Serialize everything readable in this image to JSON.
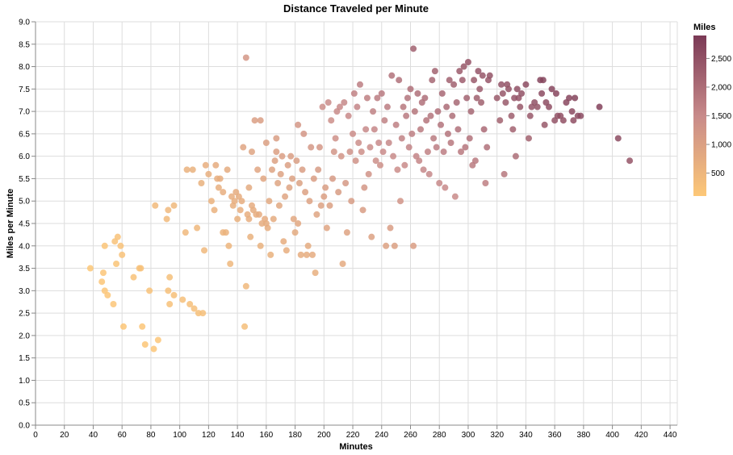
{
  "chart_data": {
    "type": "scatter",
    "title": "Distance Traveled per Minute",
    "xlabel": "Minutes",
    "ylabel": "Miles per Minute",
    "xlim": [
      0,
      445
    ],
    "ylim": [
      0,
      9
    ],
    "x_ticks": [
      0,
      20,
      40,
      60,
      80,
      100,
      120,
      140,
      160,
      180,
      200,
      220,
      240,
      260,
      280,
      300,
      320,
      340,
      360,
      380,
      400,
      420,
      440
    ],
    "y_ticks": [
      "0.0",
      "0.5",
      "1.0",
      "1.5",
      "2.0",
      "2.5",
      "3.0",
      "3.5",
      "4.0",
      "4.5",
      "5.0",
      "5.5",
      "6.0",
      "6.5",
      "7.0",
      "7.5",
      "8.0",
      "8.5",
      "9.0"
    ],
    "grid": true,
    "legend": {
      "title": "Miles",
      "position": "right",
      "ticks": [
        500,
        1000,
        1500,
        2000,
        2500
      ],
      "tick_labels": [
        "500",
        "1,000",
        "1,500",
        "2,000",
        "2,500"
      ],
      "min": 100,
      "max": 2900,
      "color_low": "#fdc877",
      "color_mid": "#c88a8a",
      "color_high": "#7b3a56"
    },
    "color_encoding": "miles = minutes * miles_per_minute",
    "points": [
      [
        38,
        3.5
      ],
      [
        46,
        3.2
      ],
      [
        47,
        3.4
      ],
      [
        48,
        4.0
      ],
      [
        48,
        3.0
      ],
      [
        50,
        2.9
      ],
      [
        54,
        2.7
      ],
      [
        55,
        4.1
      ],
      [
        56,
        3.6
      ],
      [
        57,
        4.2
      ],
      [
        59,
        4.0
      ],
      [
        60,
        3.8
      ],
      [
        61,
        2.2
      ],
      [
        68,
        3.3
      ],
      [
        72,
        3.5
      ],
      [
        73,
        3.5
      ],
      [
        74,
        2.2
      ],
      [
        76,
        1.8
      ],
      [
        79,
        3.0
      ],
      [
        82,
        1.7
      ],
      [
        83,
        4.9
      ],
      [
        85,
        1.9
      ],
      [
        91,
        4.6
      ],
      [
        92,
        4.8
      ],
      [
        92,
        3.0
      ],
      [
        93,
        3.3
      ],
      [
        93,
        2.7
      ],
      [
        96,
        4.9
      ],
      [
        96,
        2.9
      ],
      [
        102,
        2.8
      ],
      [
        104,
        4.3
      ],
      [
        105,
        5.7
      ],
      [
        107,
        2.7
      ],
      [
        109,
        5.7
      ],
      [
        110,
        2.6
      ],
      [
        112,
        4.4
      ],
      [
        113,
        2.5
      ],
      [
        115,
        5.4
      ],
      [
        116,
        2.5
      ],
      [
        117,
        3.9
      ],
      [
        118,
        5.8
      ],
      [
        120,
        5.6
      ],
      [
        122,
        5.0
      ],
      [
        124,
        4.8
      ],
      [
        125,
        5.8
      ],
      [
        126,
        5.5
      ],
      [
        127,
        5.3
      ],
      [
        128,
        5.5
      ],
      [
        130,
        4.3
      ],
      [
        130,
        5.2
      ],
      [
        132,
        4.3
      ],
      [
        133,
        5.7
      ],
      [
        134,
        4.0
      ],
      [
        135,
        3.6
      ],
      [
        136,
        5.1
      ],
      [
        137,
        4.9
      ],
      [
        138,
        5.0
      ],
      [
        139,
        5.2
      ],
      [
        140,
        4.6
      ],
      [
        141,
        5.1
      ],
      [
        142,
        4.8
      ],
      [
        143,
        5.0
      ],
      [
        144,
        6.2
      ],
      [
        145,
        2.2
      ],
      [
        146,
        8.2
      ],
      [
        146,
        3.1
      ],
      [
        147,
        4.7
      ],
      [
        148,
        5.3
      ],
      [
        148,
        4.6
      ],
      [
        149,
        4.2
      ],
      [
        150,
        4.9
      ],
      [
        150,
        6.1
      ],
      [
        151,
        4.8
      ],
      [
        152,
        6.8
      ],
      [
        153,
        4.7
      ],
      [
        154,
        5.7
      ],
      [
        155,
        4.7
      ],
      [
        156,
        6.8
      ],
      [
        156,
        4.0
      ],
      [
        157,
        4.5
      ],
      [
        158,
        5.5
      ],
      [
        159,
        4.6
      ],
      [
        160,
        4.5
      ],
      [
        160,
        6.3
      ],
      [
        161,
        4.4
      ],
      [
        162,
        5.0
      ],
      [
        163,
        3.8
      ],
      [
        164,
        5.7
      ],
      [
        165,
        4.6
      ],
      [
        166,
        5.9
      ],
      [
        167,
        6.4
      ],
      [
        167,
        6.1
      ],
      [
        168,
        5.4
      ],
      [
        169,
        4.9
      ],
      [
        170,
        5.6
      ],
      [
        171,
        6.0
      ],
      [
        172,
        4.1
      ],
      [
        173,
        5.1
      ],
      [
        174,
        3.9
      ],
      [
        175,
        5.8
      ],
      [
        176,
        5.3
      ],
      [
        177,
        6.0
      ],
      [
        178,
        5.5
      ],
      [
        179,
        4.6
      ],
      [
        180,
        4.3
      ],
      [
        181,
        5.9
      ],
      [
        182,
        4.5
      ],
      [
        182,
        6.7
      ],
      [
        183,
        5.4
      ],
      [
        184,
        3.8
      ],
      [
        185,
        5.7
      ],
      [
        186,
        6.5
      ],
      [
        187,
        5.2
      ],
      [
        188,
        3.8
      ],
      [
        189,
        4.0
      ],
      [
        190,
        5.0
      ],
      [
        191,
        6.2
      ],
      [
        192,
        3.8
      ],
      [
        193,
        5.5
      ],
      [
        194,
        3.4
      ],
      [
        195,
        4.7
      ],
      [
        196,
        5.7
      ],
      [
        197,
        6.2
      ],
      [
        198,
        4.9
      ],
      [
        199,
        7.1
      ],
      [
        200,
        5.1
      ],
      [
        201,
        5.3
      ],
      [
        202,
        4.4
      ],
      [
        203,
        7.2
      ],
      [
        204,
        4.9
      ],
      [
        205,
        6.8
      ],
      [
        206,
        5.5
      ],
      [
        207,
        6.1
      ],
      [
        208,
        6.4
      ],
      [
        209,
        7.0
      ],
      [
        210,
        5.2
      ],
      [
        211,
        7.1
      ],
      [
        212,
        6.0
      ],
      [
        213,
        3.6
      ],
      [
        214,
        7.2
      ],
      [
        215,
        5.4
      ],
      [
        216,
        4.3
      ],
      [
        217,
        6.9
      ],
      [
        218,
        6.1
      ],
      [
        219,
        5.0
      ],
      [
        220,
        6.5
      ],
      [
        221,
        7.4
      ],
      [
        222,
        5.9
      ],
      [
        223,
        7.1
      ],
      [
        224,
        6.3
      ],
      [
        225,
        7.6
      ],
      [
        226,
        6.1
      ],
      [
        227,
        4.8
      ],
      [
        228,
        5.3
      ],
      [
        229,
        6.6
      ],
      [
        230,
        7.3
      ],
      [
        231,
        5.6
      ],
      [
        232,
        6.2
      ],
      [
        233,
        4.2
      ],
      [
        234,
        7.0
      ],
      [
        235,
        6.6
      ],
      [
        236,
        5.9
      ],
      [
        237,
        7.3
      ],
      [
        238,
        6.3
      ],
      [
        239,
        5.8
      ],
      [
        240,
        7.4
      ],
      [
        241,
        6.1
      ],
      [
        242,
        6.8
      ],
      [
        243,
        4.0
      ],
      [
        244,
        7.1
      ],
      [
        245,
        6.3
      ],
      [
        246,
        4.4
      ],
      [
        247,
        7.8
      ],
      [
        248,
        6.0
      ],
      [
        249,
        4.0
      ],
      [
        250,
        6.7
      ],
      [
        251,
        5.7
      ],
      [
        252,
        7.7
      ],
      [
        253,
        5.0
      ],
      [
        254,
        6.4
      ],
      [
        255,
        7.1
      ],
      [
        256,
        5.8
      ],
      [
        257,
        6.9
      ],
      [
        258,
        7.3
      ],
      [
        259,
        6.2
      ],
      [
        260,
        7.5
      ],
      [
        261,
        6.5
      ],
      [
        262,
        8.4
      ],
      [
        262,
        4.0
      ],
      [
        263,
        7.0
      ],
      [
        264,
        6.0
      ],
      [
        265,
        7.4
      ],
      [
        266,
        5.9
      ],
      [
        267,
        6.6
      ],
      [
        268,
        7.2
      ],
      [
        269,
        5.7
      ],
      [
        270,
        7.3
      ],
      [
        271,
        6.8
      ],
      [
        272,
        6.1
      ],
      [
        273,
        5.6
      ],
      [
        274,
        6.9
      ],
      [
        275,
        7.7
      ],
      [
        276,
        6.4
      ],
      [
        277,
        7.9
      ],
      [
        278,
        6.2
      ],
      [
        279,
        7.0
      ],
      [
        280,
        5.4
      ],
      [
        281,
        6.7
      ],
      [
        282,
        7.4
      ],
      [
        283,
        6.1
      ],
      [
        284,
        5.3
      ],
      [
        285,
        7.1
      ],
      [
        286,
        6.5
      ],
      [
        287,
        7.7
      ],
      [
        288,
        6.3
      ],
      [
        289,
        6.9
      ],
      [
        290,
        7.6
      ],
      [
        291,
        5.1
      ],
      [
        292,
        7.2
      ],
      [
        293,
        6.6
      ],
      [
        294,
        7.9
      ],
      [
        295,
        6.1
      ],
      [
        296,
        7.7
      ],
      [
        297,
        8.0
      ],
      [
        298,
        6.2
      ],
      [
        299,
        7.3
      ],
      [
        300,
        8.1
      ],
      [
        301,
        6.4
      ],
      [
        302,
        7.0
      ],
      [
        303,
        5.8
      ],
      [
        304,
        7.7
      ],
      [
        305,
        5.9
      ],
      [
        306,
        7.3
      ],
      [
        307,
        7.9
      ],
      [
        308,
        7.5
      ],
      [
        309,
        7.2
      ],
      [
        310,
        7.8
      ],
      [
        311,
        6.6
      ],
      [
        312,
        5.4
      ],
      [
        313,
        6.2
      ],
      [
        314,
        7.7
      ],
      [
        315,
        7.8
      ],
      [
        320,
        7.3
      ],
      [
        322,
        6.8
      ],
      [
        323,
        7.6
      ],
      [
        324,
        7.4
      ],
      [
        325,
        5.6
      ],
      [
        326,
        7.2
      ],
      [
        327,
        7.6
      ],
      [
        328,
        7.5
      ],
      [
        330,
        6.9
      ],
      [
        331,
        6.6
      ],
      [
        332,
        7.3
      ],
      [
        333,
        6.0
      ],
      [
        334,
        7.5
      ],
      [
        335,
        7.3
      ],
      [
        336,
        7.1
      ],
      [
        337,
        7.4
      ],
      [
        340,
        7.6
      ],
      [
        342,
        6.4
      ],
      [
        343,
        6.9
      ],
      [
        344,
        7.1
      ],
      [
        346,
        7.2
      ],
      [
        348,
        7.1
      ],
      [
        350,
        7.7
      ],
      [
        351,
        7.4
      ],
      [
        352,
        7.7
      ],
      [
        353,
        6.7
      ],
      [
        354,
        7.2
      ],
      [
        356,
        7.1
      ],
      [
        358,
        7.5
      ],
      [
        360,
        6.8
      ],
      [
        361,
        7.4
      ],
      [
        362,
        6.9
      ],
      [
        364,
        6.9
      ],
      [
        366,
        6.8
      ],
      [
        368,
        7.2
      ],
      [
        370,
        7.3
      ],
      [
        372,
        7.0
      ],
      [
        373,
        6.8
      ],
      [
        374,
        7.3
      ],
      [
        376,
        6.9
      ],
      [
        378,
        6.9
      ],
      [
        391,
        7.1
      ],
      [
        404,
        6.4
      ],
      [
        412,
        5.9
      ]
    ]
  }
}
